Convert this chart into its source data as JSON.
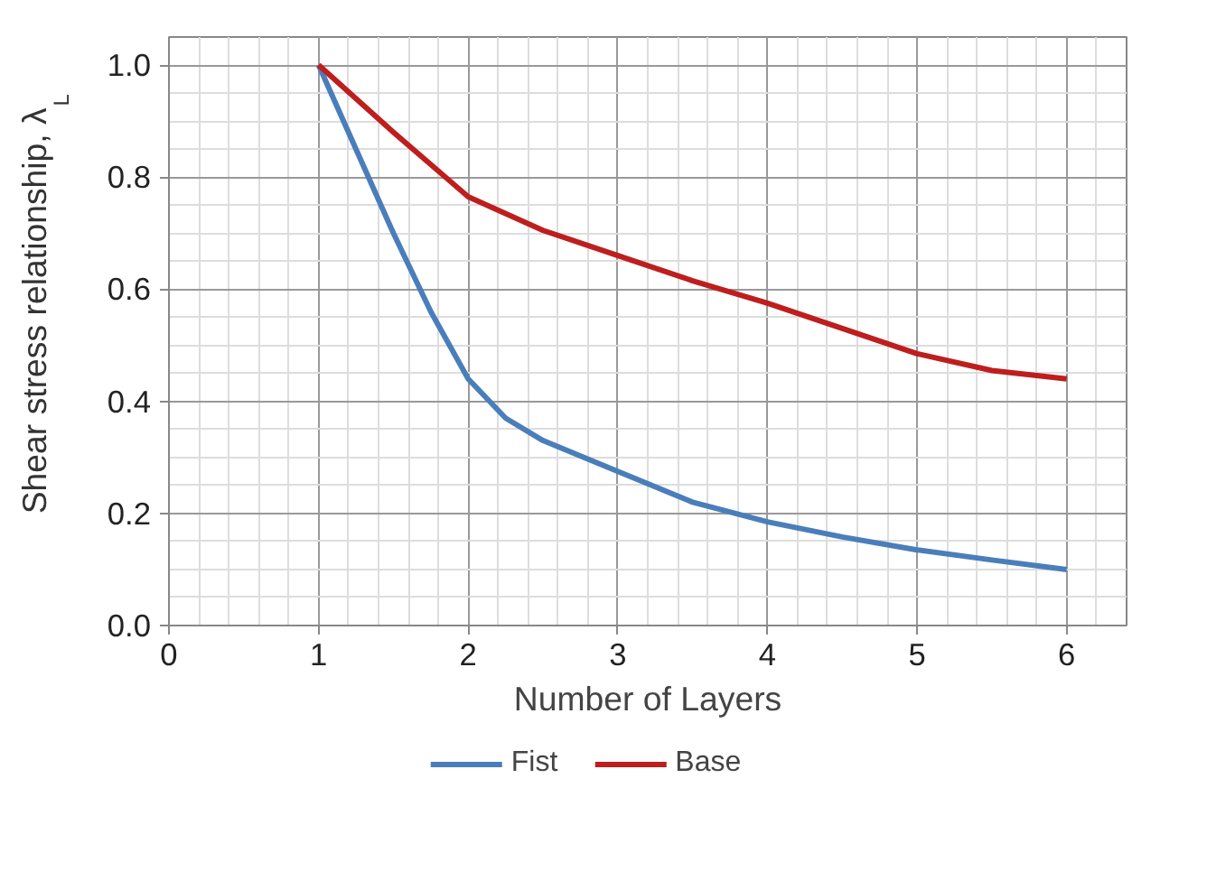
{
  "chart_data": {
    "type": "line",
    "xlabel": "Number of Layers",
    "ylabel": "Shear stress relationship, λ$_{L}$",
    "series": [
      {
        "name": "Fist",
        "color": "#4a7ebb",
        "x": [
          1,
          1.25,
          1.5,
          1.75,
          2,
          2.25,
          2.5,
          3,
          3.5,
          4,
          4.5,
          5,
          5.5,
          6
        ],
        "values": [
          1.0,
          0.85,
          0.7,
          0.56,
          0.44,
          0.37,
          0.33,
          0.275,
          0.22,
          0.185,
          0.158,
          0.135,
          0.117,
          0.1
        ]
      },
      {
        "name": "Base",
        "color": "#be1e1e",
        "x": [
          1,
          1.5,
          2,
          2.5,
          3,
          3.5,
          4,
          4.5,
          5,
          5.5,
          6
        ],
        "values": [
          1.0,
          0.88,
          0.765,
          0.705,
          0.66,
          0.615,
          0.575,
          0.53,
          0.485,
          0.455,
          0.44
        ]
      }
    ],
    "xlim": [
      0,
      6.4
    ],
    "ylim": [
      0,
      1.05
    ],
    "xticks": [
      0,
      1,
      2,
      3,
      4,
      5,
      6
    ],
    "yticks": [
      {
        "value": 0,
        "label": "0.0"
      },
      {
        "value": 0.2,
        "label": "0.2"
      },
      {
        "value": 0.4,
        "label": "0.4"
      },
      {
        "value": 0.6,
        "label": "0.6"
      },
      {
        "value": 0.8,
        "label": "0.8"
      },
      {
        "value": 1.0,
        "label": "1.0"
      }
    ],
    "grid": true,
    "legend": "bottom",
    "marker": "none",
    "line_style": "solid"
  }
}
